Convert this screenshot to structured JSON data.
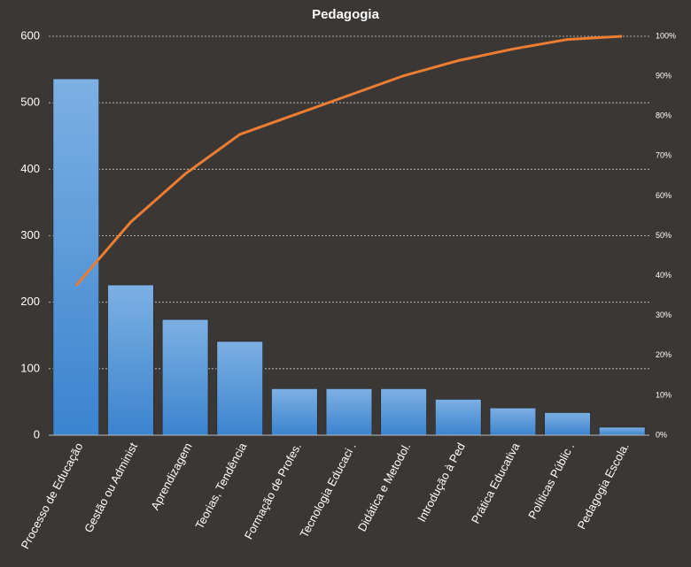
{
  "chart_data": {
    "type": "pareto",
    "title": "Pedagogia",
    "categories": [
      "Processo de Educação",
      "Gestão ou Administ",
      "Aprendizagem",
      "Teorias, Tendência",
      "Formação de Profes.",
      "Tecnologia Educaci .",
      "Didática e Metodol.",
      "Introdução à Ped",
      "Prática Educativa",
      "Políticas Públic .",
      "Pedagogia Escola."
    ],
    "series": [
      {
        "type": "bar",
        "color": "#4a90d6",
        "values": [
          536,
          226,
          174,
          141,
          70,
          70,
          70,
          54,
          41,
          34,
          12
        ]
      },
      {
        "type": "line",
        "axis": "y2",
        "color": "#ed7d31",
        "values": [
          37.5,
          53.4,
          65.5,
          75.4,
          80.3,
          85.2,
          90.1,
          93.9,
          96.8,
          99.2,
          100
        ]
      }
    ],
    "ylim": [
      0,
      600
    ],
    "yticks": [
      0,
      100,
      200,
      300,
      400,
      500,
      600
    ],
    "y2lim": [
      0,
      100
    ],
    "y2ticks": [
      {
        "value": 0,
        "label": "0%"
      },
      {
        "value": 10,
        "label": "10%"
      },
      {
        "value": 20,
        "label": "20%"
      },
      {
        "value": 30,
        "label": "30%"
      },
      {
        "value": 40,
        "label": "40%"
      },
      {
        "value": 50,
        "label": "50%"
      },
      {
        "value": 60,
        "label": "60%"
      },
      {
        "value": 70,
        "label": "70%"
      },
      {
        "value": 80,
        "label": "80%"
      },
      {
        "value": 90,
        "label": "90%"
      },
      {
        "value": 100,
        "label": "100%"
      }
    ],
    "grid": true
  }
}
